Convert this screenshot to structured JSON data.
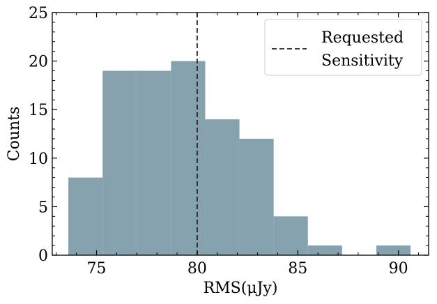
{
  "chart_data": {
    "type": "bar",
    "subtype": "histogram",
    "bins": [
      {
        "x0": 73.6,
        "x1": 75.3,
        "count": 8
      },
      {
        "x0": 75.3,
        "x1": 77.0,
        "count": 19
      },
      {
        "x0": 77.0,
        "x1": 78.7,
        "count": 19
      },
      {
        "x0": 78.7,
        "x1": 80.4,
        "count": 20
      },
      {
        "x0": 80.4,
        "x1": 82.1,
        "count": 14
      },
      {
        "x0": 82.1,
        "x1": 83.8,
        "count": 12
      },
      {
        "x0": 83.8,
        "x1": 85.5,
        "count": 4
      },
      {
        "x0": 85.5,
        "x1": 87.2,
        "count": 1
      },
      {
        "x0": 87.2,
        "x1": 88.9,
        "count": 0
      },
      {
        "x0": 88.9,
        "x1": 90.6,
        "count": 1
      }
    ],
    "bar_color": "#86a2ae",
    "reference_line": {
      "x": 80,
      "label_lines": [
        "Requested",
        "Sensitivity"
      ],
      "style": "dashed",
      "color": "#222222"
    },
    "xlabel": "RMS(μJy)",
    "ylabel": "Counts",
    "xlim": [
      72.8,
      91.5
    ],
    "ylim": [
      0,
      25
    ],
    "xticks": [
      75,
      80,
      85,
      90
    ],
    "yticks": [
      0,
      5,
      10,
      15,
      20,
      25
    ],
    "legend_position": "top-right",
    "grid": false
  }
}
